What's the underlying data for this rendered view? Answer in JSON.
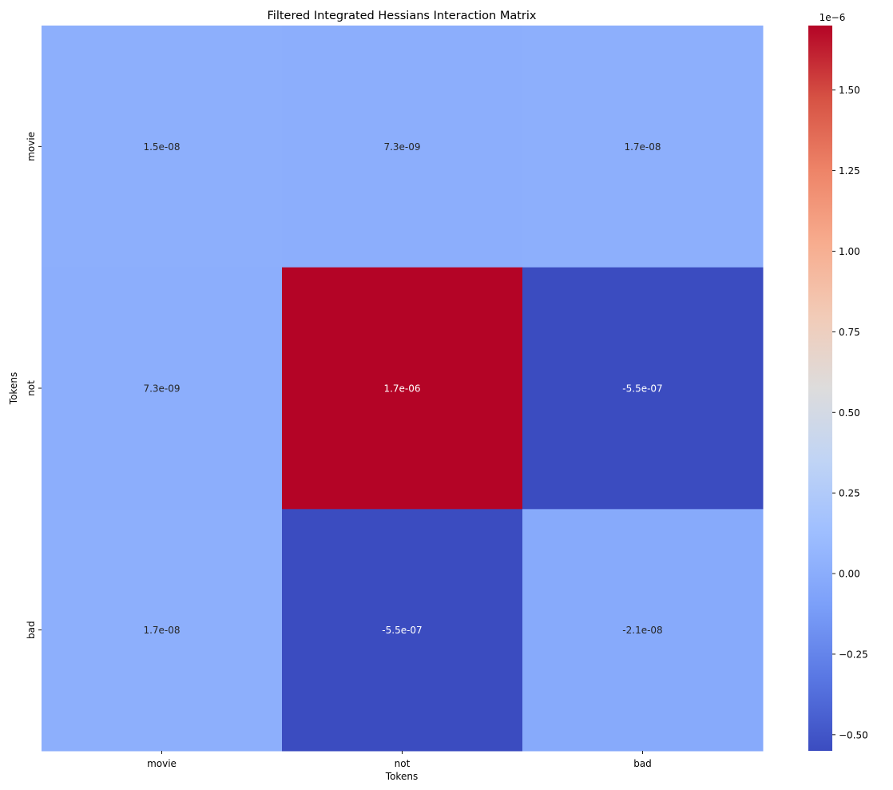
{
  "chart_data": {
    "type": "heatmap",
    "title": "Filtered Integrated Hessians Interaction Matrix",
    "xlabel": "Tokens",
    "ylabel": "Tokens",
    "x_categories": [
      "movie",
      "not",
      "bad"
    ],
    "y_categories": [
      "movie",
      "not",
      "bad"
    ],
    "values": [
      [
        1.5e-08,
        7.3e-09,
        1.7e-08
      ],
      [
        7.3e-09,
        1.7e-06,
        -5.5e-07
      ],
      [
        1.7e-08,
        -5.5e-07,
        -2.1e-08
      ]
    ],
    "cell_labels": [
      [
        "1.5e-08",
        "7.3e-09",
        "1.7e-08"
      ],
      [
        "7.3e-09",
        "1.7e-06",
        "-5.5e-07"
      ],
      [
        "1.7e-08",
        "-5.5e-07",
        "-2.1e-08"
      ]
    ],
    "colormap": "coolwarm",
    "color_stops": [
      "#3b4cc0",
      "#5977e3",
      "#7b9ff9",
      "#9ebeff",
      "#c0d4f5",
      "#dddcdc",
      "#f2cbb7",
      "#f7ac8e",
      "#ee8468",
      "#d65244",
      "#b40426"
    ],
    "colorbar": {
      "range": [
        -5.5e-07,
        1.7e-06
      ],
      "multiplier_label": "1e−6",
      "ticks": [
        {
          "value": -0.5,
          "label": "−0.50"
        },
        {
          "value": -0.25,
          "label": "−0.25"
        },
        {
          "value": 0.0,
          "label": "0.00"
        },
        {
          "value": 0.25,
          "label": "0.25"
        },
        {
          "value": 0.5,
          "label": "0.50"
        },
        {
          "value": 0.75,
          "label": "0.75"
        },
        {
          "value": 1.0,
          "label": "1.00"
        },
        {
          "value": 1.25,
          "label": "1.25"
        },
        {
          "value": 1.5,
          "label": "1.50"
        }
      ]
    },
    "text_color_dark": "#262626",
    "text_color_light": "#ffffff"
  }
}
